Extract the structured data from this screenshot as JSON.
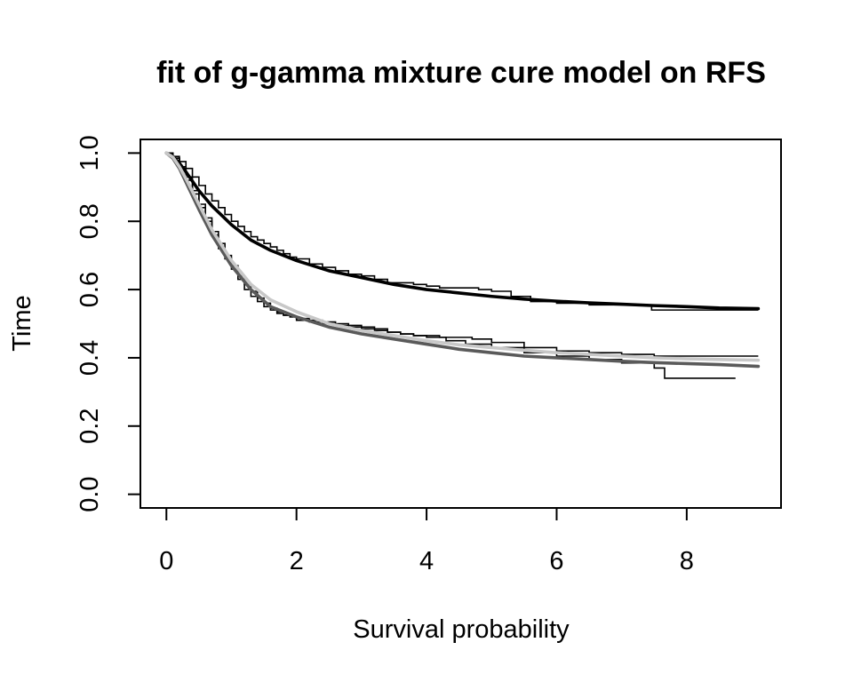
{
  "chart_data": {
    "type": "line",
    "title": "fit of g-gamma mixture cure model on RFS",
    "xlabel": "Survival probability",
    "ylabel": "Time",
    "xlim": [
      -0.4,
      9.45
    ],
    "ylim": [
      -0.04,
      1.04
    ],
    "xticks": [
      0,
      2,
      4,
      6,
      8
    ],
    "yticks": [
      0.0,
      0.2,
      0.4,
      0.6,
      0.8,
      1.0
    ],
    "xtick_labels": [
      "0",
      "2",
      "4",
      "6",
      "8"
    ],
    "ytick_labels": [
      "0.0",
      "0.2",
      "0.4",
      "0.6",
      "0.8",
      "1.0"
    ],
    "grid": false,
    "legend": "none",
    "series": [
      {
        "kind": "step",
        "color": "#000000",
        "x": [
          0,
          0.1,
          0.2,
          0.3,
          0.4,
          0.5,
          0.6,
          0.7,
          0.8,
          0.9,
          1.0,
          1.1,
          1.2,
          1.3,
          1.4,
          1.5,
          1.6,
          1.7,
          1.8,
          1.9,
          2.0,
          2.2,
          2.4,
          2.6,
          2.8,
          3.0,
          3.2,
          3.4,
          3.6,
          3.8,
          4.0,
          4.2,
          4.4,
          4.6,
          4.8,
          5.0,
          5.3,
          5.6,
          6.0,
          6.5,
          7.0,
          7.45,
          7.46,
          8.2,
          9.1
        ],
        "y": [
          1.0,
          0.99,
          0.975,
          0.955,
          0.93,
          0.905,
          0.88,
          0.86,
          0.84,
          0.82,
          0.8,
          0.785,
          0.77,
          0.755,
          0.745,
          0.735,
          0.725,
          0.715,
          0.705,
          0.695,
          0.69,
          0.675,
          0.665,
          0.655,
          0.645,
          0.64,
          0.63,
          0.62,
          0.62,
          0.615,
          0.61,
          0.605,
          0.605,
          0.605,
          0.6,
          0.595,
          0.58,
          0.565,
          0.56,
          0.555,
          0.555,
          0.555,
          0.54,
          0.54,
          0.54
        ]
      },
      {
        "kind": "step",
        "color": "#000000",
        "x": [
          0,
          0.1,
          0.2,
          0.3,
          0.4,
          0.5,
          0.6,
          0.7,
          0.8,
          0.9,
          1.0,
          1.1,
          1.2,
          1.3,
          1.4,
          1.5,
          1.6,
          1.7,
          1.8,
          1.9,
          2.0,
          2.2,
          2.4,
          2.6,
          2.8,
          3.0,
          3.2,
          3.4,
          3.6,
          3.8,
          4.0,
          4.3,
          4.6,
          5.0,
          5.5,
          6.0,
          6.5,
          7.0,
          7.5,
          7.65,
          7.66,
          8.1,
          8.75
        ],
        "y": [
          1.0,
          0.985,
          0.96,
          0.93,
          0.89,
          0.85,
          0.81,
          0.77,
          0.735,
          0.7,
          0.67,
          0.64,
          0.615,
          0.595,
          0.575,
          0.56,
          0.545,
          0.535,
          0.525,
          0.52,
          0.51,
          0.505,
          0.5,
          0.495,
          0.49,
          0.485,
          0.48,
          0.475,
          0.47,
          0.465,
          0.46,
          0.45,
          0.44,
          0.43,
          0.415,
          0.405,
          0.395,
          0.385,
          0.37,
          0.37,
          0.34,
          0.34,
          0.34
        ]
      },
      {
        "kind": "step",
        "color": "#000000",
        "x": [
          0,
          0.1,
          0.2,
          0.3,
          0.4,
          0.5,
          0.6,
          0.7,
          0.8,
          0.9,
          1.0,
          1.1,
          1.2,
          1.3,
          1.4,
          1.5,
          1.6,
          1.7,
          1.8,
          1.9,
          2.0,
          2.2,
          2.4,
          2.6,
          2.8,
          3.0,
          3.2,
          3.4,
          3.6,
          3.8,
          4.0,
          4.2,
          4.4,
          4.7,
          5.0,
          5.5,
          6.0,
          6.5,
          7.0,
          7.5,
          8.0,
          9.1
        ],
        "y": [
          1.0,
          0.985,
          0.955,
          0.92,
          0.88,
          0.84,
          0.8,
          0.76,
          0.72,
          0.69,
          0.66,
          0.63,
          0.6,
          0.58,
          0.565,
          0.55,
          0.54,
          0.53,
          0.525,
          0.52,
          0.515,
          0.51,
          0.505,
          0.5,
          0.495,
          0.49,
          0.485,
          0.475,
          0.47,
          0.465,
          0.465,
          0.46,
          0.46,
          0.455,
          0.445,
          0.43,
          0.42,
          0.415,
          0.41,
          0.405,
          0.405,
          0.405
        ]
      },
      {
        "kind": "curve",
        "color": "#000000",
        "x": [
          0,
          0.1,
          0.2,
          0.3,
          0.5,
          0.7,
          1.0,
          1.3,
          1.6,
          2.0,
          2.5,
          3.0,
          3.5,
          4.0,
          4.5,
          5.0,
          5.5,
          6.0,
          6.5,
          7.0,
          7.5,
          8.0,
          8.5,
          9.1
        ],
        "y": [
          1.0,
          0.99,
          0.97,
          0.945,
          0.89,
          0.845,
          0.79,
          0.745,
          0.715,
          0.685,
          0.655,
          0.635,
          0.615,
          0.6,
          0.59,
          0.58,
          0.572,
          0.566,
          0.561,
          0.557,
          0.553,
          0.55,
          0.546,
          0.544
        ]
      },
      {
        "kind": "curve",
        "color": "#5a5a5a",
        "x": [
          0,
          0.1,
          0.2,
          0.3,
          0.5,
          0.7,
          1.0,
          1.3,
          1.6,
          2.0,
          2.5,
          3.0,
          3.5,
          4.0,
          4.5,
          5.0,
          5.5,
          6.0,
          6.5,
          7.0,
          7.5,
          8.0,
          8.5,
          9.1
        ],
        "y": [
          1.0,
          0.985,
          0.955,
          0.915,
          0.835,
          0.76,
          0.67,
          0.6,
          0.55,
          0.52,
          0.49,
          0.47,
          0.455,
          0.44,
          0.425,
          0.415,
          0.405,
          0.4,
          0.395,
          0.39,
          0.386,
          0.383,
          0.38,
          0.375
        ]
      },
      {
        "kind": "curve",
        "color": "#c8c8c8",
        "x": [
          0,
          0.1,
          0.2,
          0.3,
          0.5,
          0.7,
          1.0,
          1.3,
          1.6,
          2.0,
          2.5,
          3.0,
          3.5,
          4.0,
          4.5,
          5.0,
          5.5,
          6.0,
          6.5,
          7.0,
          7.5,
          8.0,
          8.5,
          9.1
        ],
        "y": [
          1.0,
          0.988,
          0.96,
          0.925,
          0.85,
          0.775,
          0.685,
          0.615,
          0.57,
          0.535,
          0.5,
          0.48,
          0.465,
          0.45,
          0.438,
          0.43,
          0.422,
          0.415,
          0.41,
          0.405,
          0.4,
          0.397,
          0.395,
          0.393
        ]
      }
    ]
  }
}
